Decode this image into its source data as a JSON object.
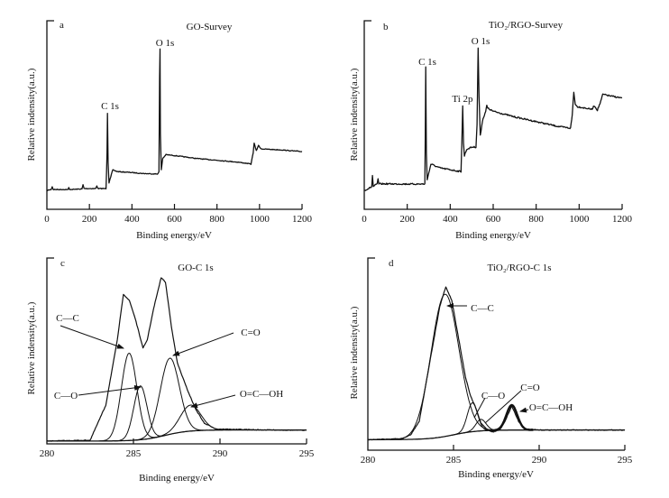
{
  "chart_data": [
    {
      "panel": "a",
      "type": "line",
      "title": "GO-Survey",
      "xlabel": "Binding energy/eV",
      "ylabel": "Relative indensity(a.u.)",
      "xlim": [
        0,
        1200
      ],
      "xticks": [
        "0",
        "200",
        "400",
        "600",
        "800",
        "1000",
        "1200"
      ],
      "ylim": [
        0,
        100
      ],
      "annotations": [
        {
          "text": "C 1s",
          "x": 285
        },
        {
          "text": "O 1s",
          "x": 532
        }
      ],
      "series": [
        {
          "points": [
            [
              0,
              10
            ],
            [
              20,
              10.5
            ],
            [
              25,
              12
            ],
            [
              30,
              10.5
            ],
            [
              100,
              10.5
            ],
            [
              103,
              11.5
            ],
            [
              106,
              10.5
            ],
            [
              165,
              10.8
            ],
            [
              170,
              13
            ],
            [
              175,
              11
            ],
            [
              230,
              11
            ],
            [
              235,
              12.5
            ],
            [
              240,
              11
            ],
            [
              278,
              11
            ],
            [
              283,
              30
            ],
            [
              285,
              51
            ],
            [
              288,
              25
            ],
            [
              292,
              14
            ],
            [
              300,
              17
            ],
            [
              310,
              21
            ],
            [
              330,
              20
            ],
            [
              400,
              19.5
            ],
            [
              450,
              19
            ],
            [
              520,
              18.7
            ],
            [
              527,
              20
            ],
            [
              530,
              70
            ],
            [
              532,
              85
            ],
            [
              534,
              40
            ],
            [
              538,
              21
            ],
            [
              545,
              27
            ],
            [
              560,
              29
            ],
            [
              600,
              28.5
            ],
            [
              700,
              27
            ],
            [
              800,
              26
            ],
            [
              900,
              25
            ],
            [
              960,
              24
            ],
            [
              970,
              30
            ],
            [
              975,
              35
            ],
            [
              985,
              31
            ],
            [
              995,
              34
            ],
            [
              1000,
              33
            ],
            [
              1010,
              32
            ],
            [
              1100,
              31.5
            ],
            [
              1200,
              30.6
            ]
          ]
        }
      ]
    },
    {
      "panel": "b",
      "type": "line",
      "title": "TiO₂/RGO-Survey",
      "xlabel": "Binding energy/eV",
      "ylabel": "Relative indensity(a.u.)",
      "xlim": [
        0,
        1200
      ],
      "xticks": [
        "0",
        "200",
        "400",
        "600",
        "800",
        "1000",
        "1200"
      ],
      "ylim": [
        0,
        100
      ],
      "annotations": [
        {
          "text": "C 1s",
          "x": 285
        },
        {
          "text": "Ti 2p",
          "x": 458
        },
        {
          "text": "O 1s",
          "x": 530
        }
      ],
      "series": [
        {
          "points": [
            [
              0,
              10
            ],
            [
              20,
              11
            ],
            [
              35,
              12
            ],
            [
              38,
              18
            ],
            [
              42,
              12
            ],
            [
              60,
              13.5
            ],
            [
              64,
              16
            ],
            [
              68,
              13.5
            ],
            [
              100,
              13.5
            ],
            [
              200,
              13.4
            ],
            [
              282,
              13.4
            ],
            [
              284,
              40
            ],
            [
              286,
              75.6
            ],
            [
              289,
              30
            ],
            [
              293,
              16
            ],
            [
              300,
              19
            ],
            [
              310,
              24
            ],
            [
              350,
              22
            ],
            [
              400,
              21
            ],
            [
              450,
              20
            ],
            [
              454,
              35
            ],
            [
              458,
              55
            ],
            [
              462,
              35
            ],
            [
              466,
              28
            ],
            [
              470,
              30
            ],
            [
              480,
              32
            ],
            [
              500,
              33
            ],
            [
              520,
              33
            ],
            [
              525,
              45
            ],
            [
              530,
              85.6
            ],
            [
              534,
              60
            ],
            [
              540,
              39
            ],
            [
              550,
              47
            ],
            [
              565,
              52
            ],
            [
              570,
              55
            ],
            [
              575,
              53.6
            ],
            [
              600,
              52
            ],
            [
              700,
              49
            ],
            [
              800,
              46.5
            ],
            [
              900,
              44
            ],
            [
              960,
              43
            ],
            [
              968,
              50
            ],
            [
              975,
              62
            ],
            [
              982,
              56
            ],
            [
              990,
              54.5
            ],
            [
              1060,
              53
            ],
            [
              1070,
              55
            ],
            [
              1085,
              52.6
            ],
            [
              1100,
              57
            ],
            [
              1110,
              61
            ],
            [
              1150,
              60
            ],
            [
              1200,
              59
            ]
          ]
        }
      ]
    },
    {
      "panel": "c",
      "type": "line",
      "title": "GO-C 1s",
      "xlabel": "Binding energy/eV",
      "ylabel": "Relative indensity(a.u.)",
      "xlim": [
        280,
        295
      ],
      "xticks": [
        "280",
        "285",
        "290",
        "295"
      ],
      "ylim": [
        0,
        100
      ],
      "background": {
        "start": 1.5,
        "end": 7.5,
        "step_center_eV": 286.8
      },
      "envelope": [
        [
          280,
          1.5
        ],
        [
          282.5,
          2
        ],
        [
          283.4,
          20.7
        ],
        [
          284.07,
          56
        ],
        [
          284.42,
          80.6
        ],
        [
          284.77,
          77
        ],
        [
          285.1,
          67.6
        ],
        [
          285.55,
          51.5
        ],
        [
          285.8,
          56
        ],
        [
          286.16,
          72.5
        ],
        [
          286.6,
          89.5
        ],
        [
          286.85,
          87
        ],
        [
          287.2,
          62.8
        ],
        [
          287.54,
          43.4
        ],
        [
          288.06,
          30.4
        ],
        [
          288.58,
          19
        ],
        [
          289.1,
          11
        ],
        [
          289.8,
          8
        ],
        [
          292,
          7.6
        ],
        [
          295,
          7.3
        ]
      ],
      "components": [
        {
          "name": "C—C",
          "center": 284.75,
          "height": 47,
          "fwhm": 1.05
        },
        {
          "name": "C—O",
          "center": 285.4,
          "height": 29,
          "fwhm": 0.9
        },
        {
          "name": "C=O",
          "center": 287.1,
          "height": 41,
          "fwhm": 1.3
        },
        {
          "name": "O=C—OH",
          "center": 288.3,
          "height": 14,
          "fwhm": 1.4
        }
      ]
    },
    {
      "panel": "d",
      "type": "line",
      "title": "TiO₂/RGO-C 1s",
      "xlabel": "Binding energy/eV",
      "ylabel": "Relative indensity(a.u.)",
      "xlim": [
        280,
        295
      ],
      "xticks": [
        "280",
        "285",
        "290",
        "295"
      ],
      "ylim": [
        0,
        100
      ],
      "background": {
        "start": 5.5,
        "end": 10.5,
        "step_center_eV": 285
      },
      "envelope": [
        [
          280,
          5.5
        ],
        [
          282,
          6
        ],
        [
          282.5,
          8
        ],
        [
          283,
          15
        ],
        [
          283.5,
          40
        ],
        [
          283.8,
          55
        ],
        [
          284.2,
          75
        ],
        [
          284.55,
          85
        ],
        [
          284.9,
          78
        ],
        [
          285.3,
          58
        ],
        [
          285.7,
          38
        ],
        [
          286,
          28
        ],
        [
          286.3,
          22
        ],
        [
          286.6,
          14
        ],
        [
          287,
          10.5
        ],
        [
          287.3,
          9.5
        ],
        [
          287.7,
          10.5
        ],
        [
          288,
          15
        ],
        [
          288.4,
          23
        ],
        [
          288.8,
          15
        ],
        [
          289.2,
          11
        ],
        [
          290,
          10.5
        ],
        [
          295,
          10.5
        ]
      ],
      "components": [
        {
          "name": "C—C",
          "center": 284.5,
          "height": 74,
          "fwhm": 1.9
        },
        {
          "name": "C—O",
          "center": 286.1,
          "height": 15,
          "fwhm": 0.7
        },
        {
          "name": "C=O",
          "center": 286.6,
          "height": 6,
          "fwhm": 0.7
        },
        {
          "name": "O=C—OH",
          "center": 288.4,
          "height": 13,
          "fwhm": 0.75
        }
      ]
    }
  ],
  "panel_letters": [
    "a",
    "b",
    "c",
    "d"
  ]
}
